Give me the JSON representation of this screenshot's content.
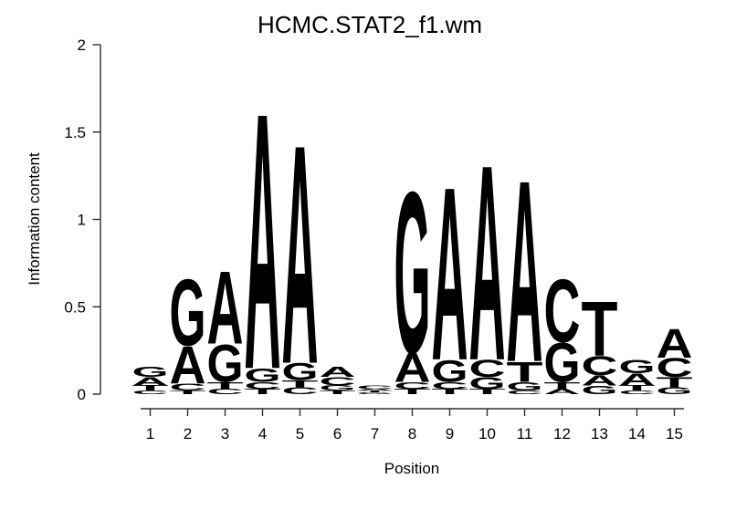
{
  "chart_data": {
    "type": "sequence_logo",
    "title": "HCMC.STAT2_f1.wm",
    "xlabel": "Position",
    "ylabel": "Information content",
    "ylim": [
      0,
      2
    ],
    "yticks": [
      0,
      0.5,
      1,
      1.5,
      2
    ],
    "positions": [
      "1",
      "2",
      "3",
      "4",
      "5",
      "6",
      "7",
      "8",
      "9",
      "10",
      "11",
      "12",
      "13",
      "14",
      "15"
    ],
    "base_colors": {
      "A": "#00D400",
      "C": "#2222CC",
      "G": "#FFA500",
      "T": "#EE1111"
    },
    "stacks": [
      [
        {
          "base": "G",
          "bits": 0.06
        },
        {
          "base": "A",
          "bits": 0.05
        },
        {
          "base": "T",
          "bits": 0.03
        },
        {
          "base": "C",
          "bits": 0.02
        }
      ],
      [
        {
          "base": "G",
          "bits": 0.39
        },
        {
          "base": "A",
          "bits": 0.22
        },
        {
          "base": "C",
          "bits": 0.04
        },
        {
          "base": "T",
          "bits": 0.02
        }
      ],
      [
        {
          "base": "A",
          "bits": 0.43
        },
        {
          "base": "G",
          "bits": 0.22
        },
        {
          "base": "T",
          "bits": 0.04
        },
        {
          "base": "C",
          "bits": 0.03
        }
      ],
      [
        {
          "base": "A",
          "bits": 1.51
        },
        {
          "base": "G",
          "bits": 0.08
        },
        {
          "base": "C",
          "bits": 0.04
        },
        {
          "base": "T",
          "bits": 0.03
        }
      ],
      [
        {
          "base": "A",
          "bits": 1.29
        },
        {
          "base": "G",
          "bits": 0.1
        },
        {
          "base": "T",
          "bits": 0.04
        },
        {
          "base": "C",
          "bits": 0.04
        }
      ],
      [
        {
          "base": "A",
          "bits": 0.06
        },
        {
          "base": "C",
          "bits": 0.05
        },
        {
          "base": "G",
          "bits": 0.03
        },
        {
          "base": "T",
          "bits": 0.02
        }
      ],
      [
        {
          "base": "C",
          "bits": 0.02
        },
        {
          "base": "A",
          "bits": 0.01
        },
        {
          "base": "T",
          "bits": 0.01
        },
        {
          "base": "G",
          "bits": 0.01
        }
      ],
      [
        {
          "base": "G",
          "bits": 0.95
        },
        {
          "base": "A",
          "bits": 0.17
        },
        {
          "base": "C",
          "bits": 0.04
        },
        {
          "base": "T",
          "bits": 0.03
        }
      ],
      [
        {
          "base": "A",
          "bits": 1.02
        },
        {
          "base": "G",
          "bits": 0.13
        },
        {
          "base": "C",
          "bits": 0.04
        },
        {
          "base": "T",
          "bits": 0.03
        }
      ],
      [
        {
          "base": "A",
          "bits": 1.15
        },
        {
          "base": "C",
          "bits": 0.1
        },
        {
          "base": "G",
          "bits": 0.07
        },
        {
          "base": "T",
          "bits": 0.03
        }
      ],
      [
        {
          "base": "A",
          "bits": 1.07
        },
        {
          "base": "T",
          "bits": 0.12
        },
        {
          "base": "G",
          "bits": 0.05
        },
        {
          "base": "C",
          "bits": 0.02
        }
      ],
      [
        {
          "base": "C",
          "bits": 0.37
        },
        {
          "base": "G",
          "bits": 0.23
        },
        {
          "base": "T",
          "bits": 0.04
        },
        {
          "base": "A",
          "bits": 0.03
        }
      ],
      [
        {
          "base": "T",
          "bits": 0.32
        },
        {
          "base": "C",
          "bits": 0.11
        },
        {
          "base": "A",
          "bits": 0.06
        },
        {
          "base": "G",
          "bits": 0.05
        }
      ],
      [
        {
          "base": "G",
          "bits": 0.08
        },
        {
          "base": "A",
          "bits": 0.07
        },
        {
          "base": "T",
          "bits": 0.03
        },
        {
          "base": "C",
          "bits": 0.02
        }
      ],
      [
        {
          "base": "A",
          "bits": 0.17
        },
        {
          "base": "C",
          "bits": 0.11
        },
        {
          "base": "T",
          "bits": 0.06
        },
        {
          "base": "G",
          "bits": 0.04
        }
      ]
    ]
  }
}
